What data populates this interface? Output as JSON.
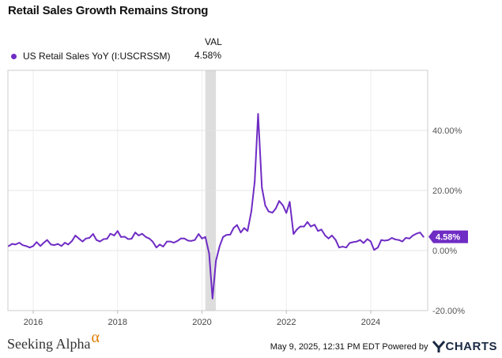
{
  "header": {
    "title": "Retail Sales Growth Remains Strong"
  },
  "legend": {
    "value_header": "VAL",
    "series_label": "US Retail Sales YoY (I:USCRSSM)",
    "series_value": "4.58%"
  },
  "footer": {
    "brand": "Seeking Alpha",
    "brand_alpha": "α",
    "date_text": "May 9, 2025, 12:31 PM EDT Powered by",
    "logo_text": "CHARTS"
  },
  "colors": {
    "series": "#6f2cc4",
    "recession_band": "#dddddd",
    "grid": "#e4e4e4"
  },
  "chart_data": {
    "type": "line",
    "title": "Retail Sales Growth Remains Strong",
    "xlabel": "",
    "ylabel": "",
    "x_unit": "year",
    "xlim": [
      2015.4,
      2025.35
    ],
    "ylim": [
      -20,
      60
    ],
    "y_ticks": [
      40,
      20,
      0,
      -20
    ],
    "y_tick_labels": [
      "40.00%",
      "20.00%",
      "0.00%",
      "-20.00%"
    ],
    "x_ticks": [
      2016,
      2018,
      2020,
      2022,
      2024
    ],
    "x_tick_labels": [
      "2016",
      "2018",
      "2020",
      "2022",
      "2024"
    ],
    "recession_shading": [
      [
        2020.08,
        2020.33
      ]
    ],
    "end_label": "4.58%",
    "series": [
      {
        "name": "US Retail Sales YoY (I:USCRSSM)",
        "x": [
          2015.42,
          2015.5,
          2015.58,
          2015.67,
          2015.75,
          2015.83,
          2015.92,
          2016.0,
          2016.08,
          2016.17,
          2016.25,
          2016.33,
          2016.42,
          2016.5,
          2016.58,
          2016.67,
          2016.75,
          2016.83,
          2016.92,
          2017.0,
          2017.08,
          2017.17,
          2017.25,
          2017.33,
          2017.42,
          2017.5,
          2017.58,
          2017.67,
          2017.75,
          2017.83,
          2017.92,
          2018.0,
          2018.08,
          2018.17,
          2018.25,
          2018.33,
          2018.42,
          2018.5,
          2018.58,
          2018.67,
          2018.75,
          2018.83,
          2018.92,
          2019.0,
          2019.08,
          2019.17,
          2019.25,
          2019.33,
          2019.42,
          2019.5,
          2019.58,
          2019.67,
          2019.75,
          2019.83,
          2019.92,
          2020.0,
          2020.08,
          2020.17,
          2020.25,
          2020.33,
          2020.42,
          2020.5,
          2020.58,
          2020.67,
          2020.75,
          2020.83,
          2020.92,
          2021.0,
          2021.08,
          2021.17,
          2021.25,
          2021.33,
          2021.42,
          2021.5,
          2021.58,
          2021.67,
          2021.75,
          2021.83,
          2021.92,
          2022.0,
          2022.08,
          2022.17,
          2022.25,
          2022.33,
          2022.42,
          2022.5,
          2022.58,
          2022.67,
          2022.75,
          2022.83,
          2022.92,
          2023.0,
          2023.08,
          2023.17,
          2023.25,
          2023.33,
          2023.42,
          2023.5,
          2023.58,
          2023.67,
          2023.75,
          2023.83,
          2023.92,
          2024.0,
          2024.08,
          2024.17,
          2024.25,
          2024.33,
          2024.42,
          2024.5,
          2024.58,
          2024.67,
          2024.75,
          2024.83,
          2024.92,
          2025.0,
          2025.08,
          2025.17,
          2025.25
        ],
        "values": [
          1.5,
          2.2,
          2.0,
          2.6,
          1.8,
          1.5,
          1.0,
          1.5,
          2.8,
          1.5,
          2.6,
          3.5,
          2.0,
          1.8,
          2.2,
          1.5,
          2.6,
          2.0,
          3.2,
          5.0,
          4.0,
          3.0,
          4.0,
          4.2,
          5.5,
          3.5,
          3.0,
          3.8,
          3.9,
          5.6,
          5.0,
          6.5,
          4.5,
          4.6,
          3.8,
          3.9,
          6.0,
          5.0,
          5.6,
          4.5,
          4.0,
          3.0,
          1.0,
          2.0,
          1.3,
          3.0,
          3.0,
          2.6,
          3.2,
          4.0,
          4.0,
          3.3,
          3.2,
          3.5,
          5.5,
          4.0,
          4.5,
          -1.0,
          -16.0,
          -3.5,
          1.5,
          4.5,
          5.2,
          5.3,
          7.5,
          8.5,
          6.0,
          7.5,
          6.5,
          13.0,
          23.0,
          45.5,
          21.0,
          15.0,
          13.0,
          12.6,
          14.0,
          16.5,
          15.0,
          12.5,
          16.2,
          5.5,
          7.0,
          8.0,
          8.0,
          9.5,
          8.0,
          8.6,
          6.5,
          7.0,
          5.0,
          4.0,
          5.0,
          3.5,
          1.0,
          1.3,
          1.0,
          2.5,
          2.8,
          3.0,
          3.5,
          2.5,
          3.8,
          3.0,
          0.2,
          1.0,
          3.5,
          3.3,
          3.5,
          4.2,
          3.7,
          3.5,
          3.0,
          4.2,
          4.0,
          5.0,
          5.6,
          6.0,
          4.58
        ]
      }
    ]
  }
}
